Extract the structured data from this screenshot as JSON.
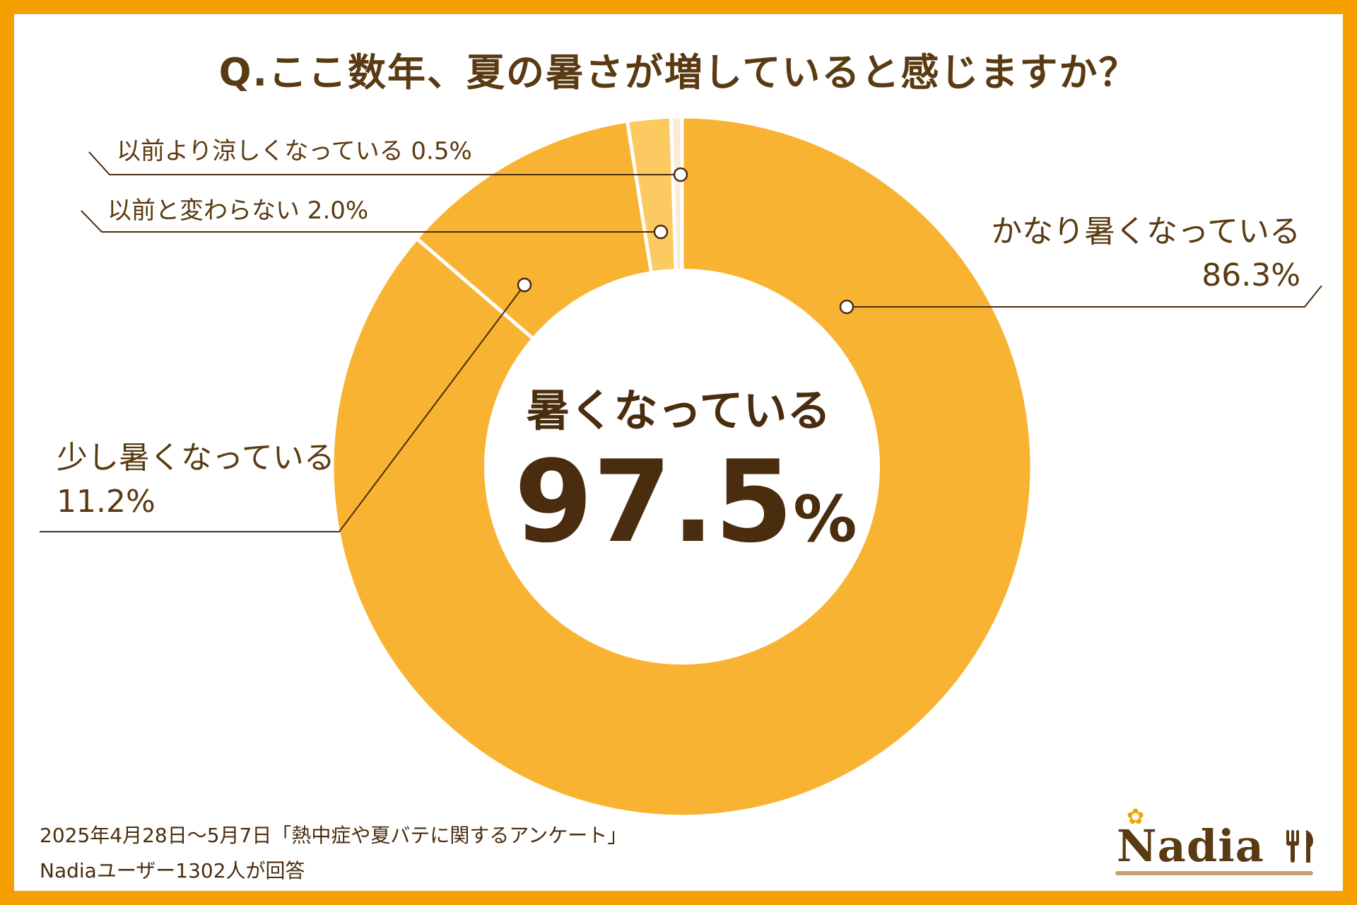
{
  "title": "Q.ここ数年、夏の暑さが増していると感じますか？",
  "chart_data": {
    "type": "pie",
    "donut": true,
    "title": "Q.ここ数年、夏の暑さが増していると感じますか？",
    "slices": [
      {
        "label": "かなり暑くなっている",
        "value": 86.3,
        "value_text": "86.3%",
        "color": "#f9b332"
      },
      {
        "label": "少し暑くなっている",
        "value": 11.2,
        "value_text": "11.2%",
        "color": "#f9b332"
      },
      {
        "label": "以前と変わらない",
        "value": 2.0,
        "value_text": "2.0%",
        "color": "#fdc961"
      },
      {
        "label": "以前より涼しくなっている",
        "value": 0.5,
        "value_text": "0.5%",
        "color": "#faebd2"
      }
    ],
    "center": {
      "label": "暑くなっている",
      "value": "97.5",
      "unit": "%"
    }
  },
  "labels": {
    "cooler": "以前より涼しくなっている 0.5%",
    "same": "以前と変わらない  2.0%",
    "much_hotter_name": "かなり暑くなっている",
    "much_hotter_value": "86.3%",
    "slightly_hotter_name": "少し暑くなっている",
    "slightly_hotter_value": "11.2%"
  },
  "footer": {
    "line1": "2025年4月28日～5月7日「熱中症や夏バテに関するアンケート」",
    "line2": "Nadiaユーザー1302人が回答"
  },
  "logo": {
    "text": "Nadia",
    "icon": "fork-knife-icon"
  },
  "colors": {
    "border": "#f6a000",
    "text": "#5a3a12",
    "divider": "#ffffff"
  }
}
